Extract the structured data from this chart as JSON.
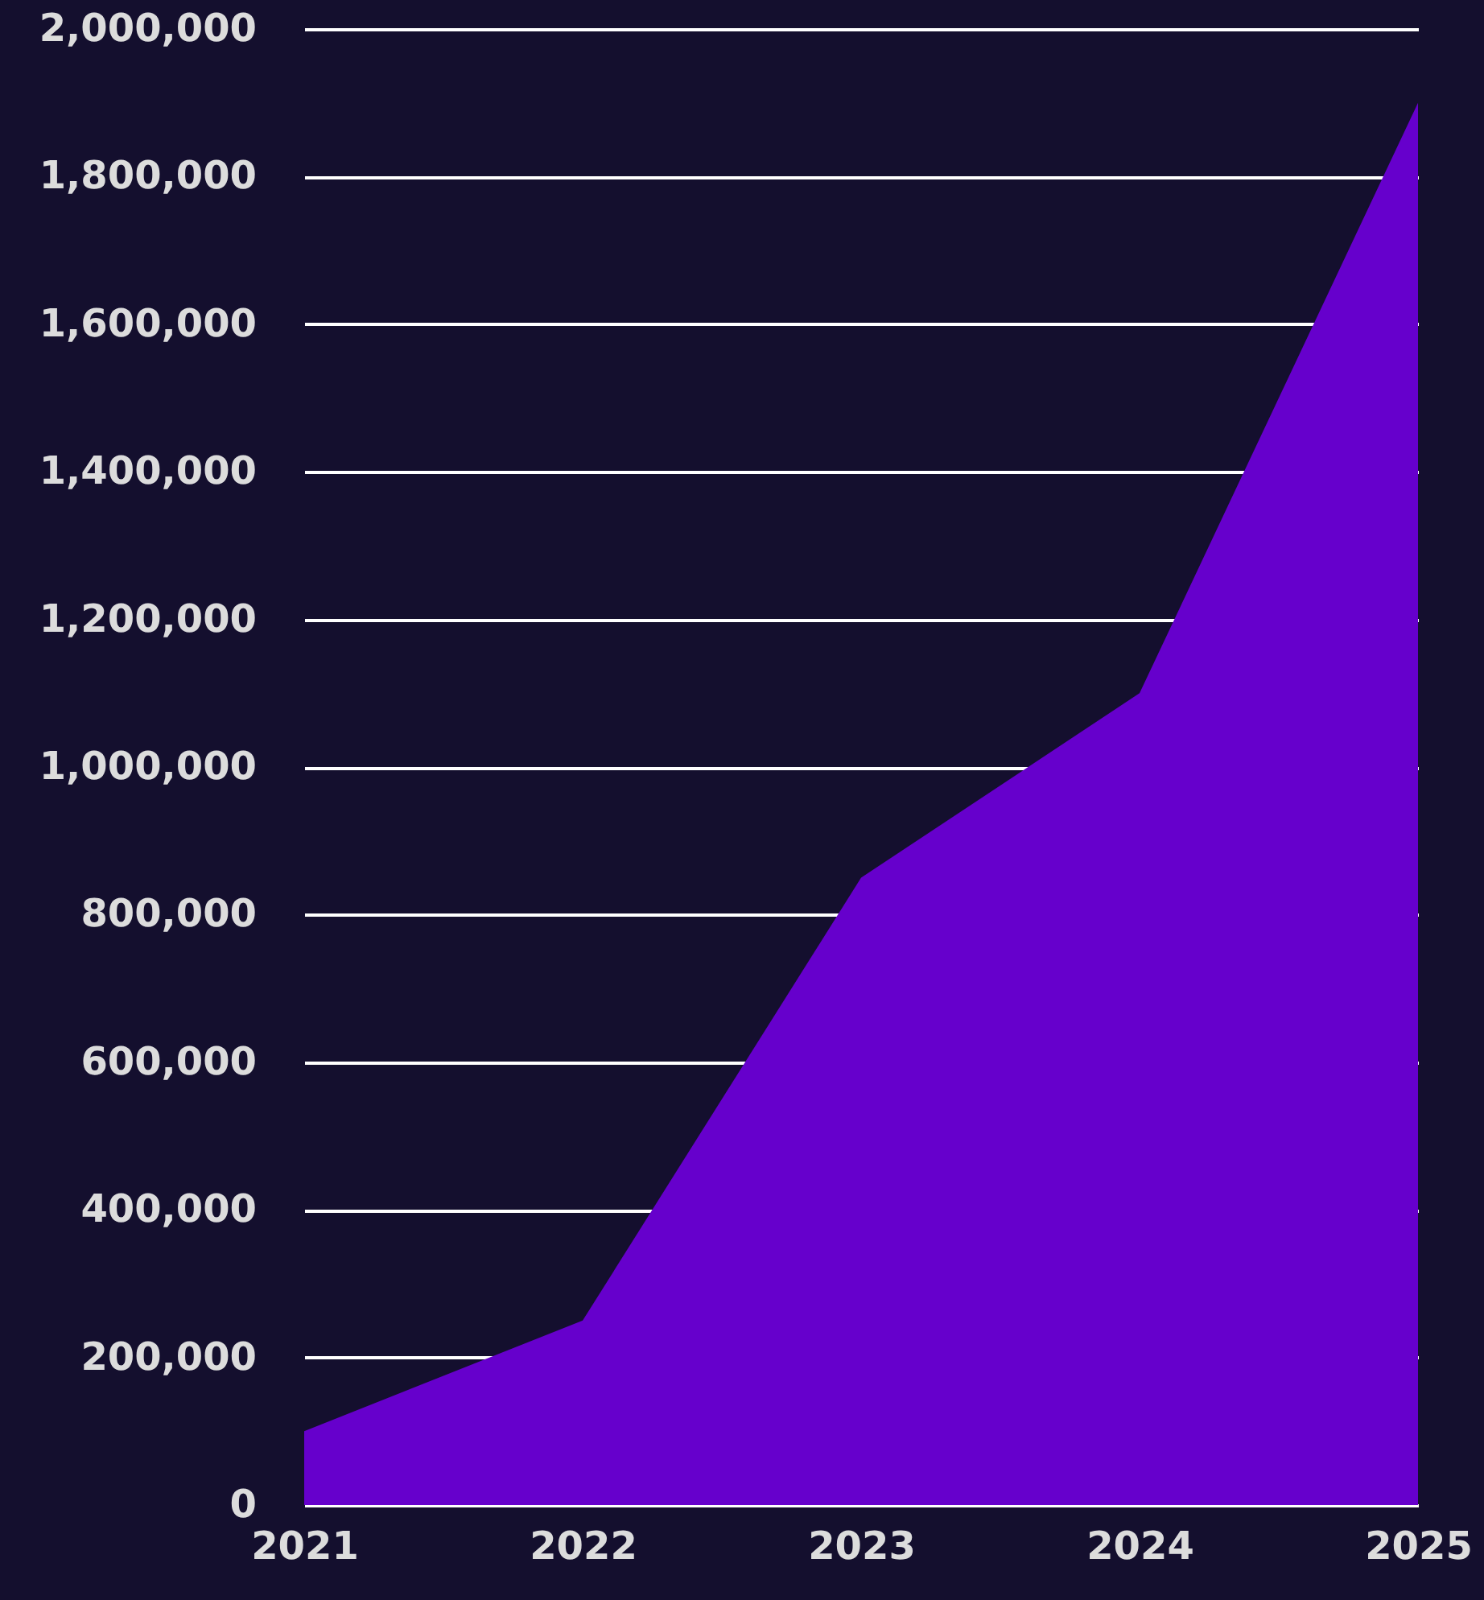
{
  "chart_data": {
    "type": "area",
    "categories": [
      "2021",
      "2022",
      "2023",
      "2024",
      "2025"
    ],
    "series": [
      {
        "color": "#6600cc",
        "values": [
          100000,
          250000,
          850000,
          1100000,
          1900000
        ]
      }
    ],
    "ylim": [
      0,
      2000000
    ],
    "yticks": [
      0,
      {
        "value": 200000,
        "label": "200,000"
      },
      {
        "value": 400000,
        "label": "400,000"
      },
      {
        "value": 600000,
        "label": "600,000"
      },
      {
        "value": 800000,
        "label": "800,000"
      },
      {
        "value": 1000000,
        "label": "1,000,000"
      },
      {
        "value": 1200000,
        "label": "1,200,000"
      },
      {
        "value": 1400000,
        "label": "1,400,000"
      },
      {
        "value": 1600000,
        "label": "1,600,000"
      },
      {
        "value": 1800000,
        "label": "1,800,000"
      },
      {
        "value": 2000000,
        "label": "2,000,000"
      }
    ],
    "grid": "y"
  }
}
